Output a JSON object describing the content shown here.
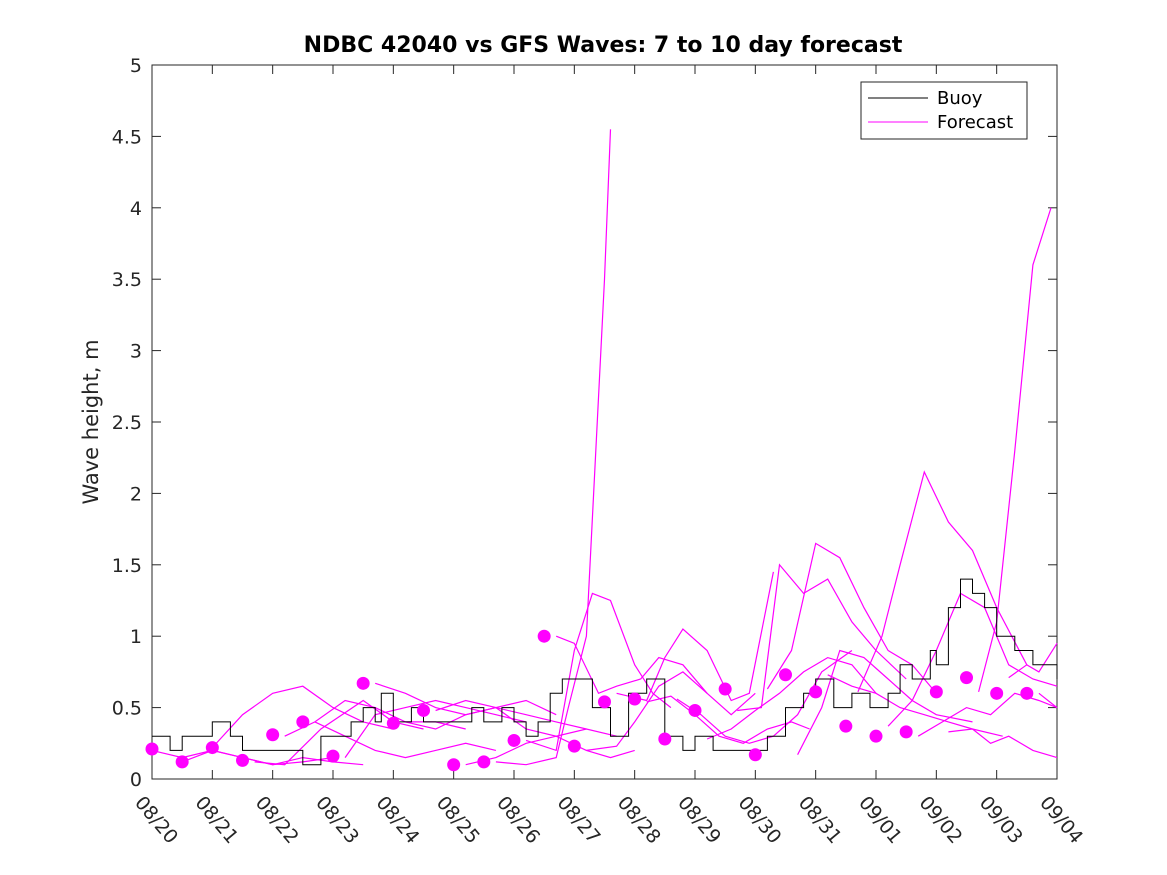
{
  "chart_data": {
    "type": "line",
    "title": "NDBC 42040 vs GFS Waves: 7 to 10 day forecast",
    "xlabel": "",
    "ylabel": "Wave height, m",
    "xlim": [
      0,
      15
    ],
    "ylim": [
      0,
      5
    ],
    "x_unit": "days since 08/20",
    "x_ticks": [
      0,
      1,
      2,
      3,
      4,
      5,
      6,
      7,
      8,
      9,
      10,
      11,
      12,
      13,
      14,
      15
    ],
    "x_tick_labels": [
      "08/20",
      "08/21",
      "08/22",
      "08/23",
      "08/24",
      "08/25",
      "08/26",
      "08/27",
      "08/28",
      "08/29",
      "08/30",
      "08/31",
      "09/01",
      "09/02",
      "09/03",
      "09/04"
    ],
    "y_ticks": [
      0,
      0.5,
      1,
      1.5,
      2,
      2.5,
      3,
      3.5,
      4,
      4.5,
      5
    ],
    "y_tick_labels": [
      "0",
      "0.5",
      "1",
      "1.5",
      "2",
      "2.5",
      "3",
      "3.5",
      "4",
      "4.5",
      "5"
    ],
    "legend": {
      "position": "top-right",
      "entries": [
        "Buoy",
        "Forecast"
      ]
    },
    "colors": {
      "buoy": "#000000",
      "forecast": "#ff00ff",
      "axes": "#262626"
    },
    "series": [
      {
        "name": "Buoy",
        "color": "#000000",
        "x": [
          0,
          0.3,
          0.5,
          1.0,
          1.3,
          1.5,
          2.0,
          2.5,
          2.8,
          3.0,
          3.3,
          3.5,
          3.7,
          3.8,
          4.0,
          4.3,
          4.5,
          5.0,
          5.3,
          5.5,
          5.8,
          6.0,
          6.2,
          6.4,
          6.6,
          6.8,
          7.0,
          7.3,
          7.6,
          7.9,
          8.2,
          8.5,
          8.8,
          9.0,
          9.3,
          9.6,
          9.9,
          10.2,
          10.5,
          10.8,
          11.0,
          11.3,
          11.6,
          11.9,
          12.2,
          12.4,
          12.6,
          12.9,
          13.0,
          13.2,
          13.4,
          13.6,
          13.8,
          14.0,
          14.3,
          14.6,
          14.9,
          15.0
        ],
        "y": [
          0.3,
          0.2,
          0.3,
          0.4,
          0.3,
          0.2,
          0.2,
          0.1,
          0.3,
          0.3,
          0.4,
          0.5,
          0.4,
          0.6,
          0.4,
          0.5,
          0.4,
          0.4,
          0.5,
          0.4,
          0.5,
          0.4,
          0.3,
          0.4,
          0.6,
          0.7,
          0.7,
          0.5,
          0.3,
          0.6,
          0.7,
          0.3,
          0.2,
          0.3,
          0.2,
          0.2,
          0.2,
          0.3,
          0.5,
          0.6,
          0.7,
          0.5,
          0.6,
          0.5,
          0.6,
          0.8,
          0.7,
          0.9,
          0.8,
          1.2,
          1.4,
          1.3,
          1.2,
          1.0,
          0.9,
          0.8,
          0.8,
          0.7
        ]
      }
    ],
    "forecast_runs": [
      {
        "x": [
          0,
          0.5,
          1,
          1.5,
          2,
          2.5,
          3
        ],
        "y": [
          0.2,
          0.15,
          0.2,
          0.15,
          0.1,
          0.12,
          0.15
        ]
      },
      {
        "x": [
          0.5,
          1,
          1.5,
          2,
          2.5,
          3,
          3.5
        ],
        "y": [
          0.12,
          0.2,
          0.15,
          0.1,
          0.15,
          0.12,
          0.1
        ]
      },
      {
        "x": [
          1,
          1.5,
          2,
          2.5,
          3,
          3.5,
          4
        ],
        "y": [
          0.22,
          0.45,
          0.6,
          0.65,
          0.5,
          0.4,
          0.35
        ]
      },
      {
        "x": [
          1.7,
          2.2,
          2.8,
          3.5,
          4,
          4.5
        ],
        "y": [
          0.12,
          0.1,
          0.35,
          0.55,
          0.4,
          0.35
        ]
      },
      {
        "x": [
          2.2,
          2.7,
          3.2,
          3.7,
          4.2,
          4.7,
          5.2
        ],
        "y": [
          0.3,
          0.4,
          0.55,
          0.5,
          0.4,
          0.4,
          0.35
        ]
      },
      {
        "x": [
          2.7,
          3.2,
          3.7,
          4.2,
          4.7,
          5.2,
          5.7
        ],
        "y": [
          0.4,
          0.3,
          0.2,
          0.15,
          0.2,
          0.25,
          0.2
        ]
      },
      {
        "x": [
          3.2,
          3.7,
          4.2,
          4.7,
          5.2,
          5.7,
          6.2
        ],
        "y": [
          0.15,
          0.45,
          0.5,
          0.55,
          0.5,
          0.45,
          0.4
        ]
      },
      {
        "x": [
          3.7,
          4.2,
          4.7,
          5.2,
          5.7,
          6.2,
          6.7
        ],
        "y": [
          0.67,
          0.6,
          0.5,
          0.45,
          0.5,
          0.55,
          0.45
        ]
      },
      {
        "x": [
          4.2,
          4.7,
          5.2,
          5.7,
          6.2,
          6.7,
          7.2
        ],
        "y": [
          0.4,
          0.35,
          0.45,
          0.5,
          0.45,
          0.4,
          0.35
        ]
      },
      {
        "x": [
          4.7,
          5.2,
          5.7,
          6.2,
          6.7,
          7.2,
          7.7
        ],
        "y": [
          0.48,
          0.55,
          0.5,
          0.35,
          0.3,
          0.35,
          0.3
        ]
      },
      {
        "x": [
          5.2,
          5.7,
          6.2,
          6.7,
          7.2,
          7.6,
          8.0
        ],
        "y": [
          0.1,
          0.15,
          0.25,
          0.3,
          0.2,
          0.15,
          0.2
        ]
      },
      {
        "x": [
          5.7,
          6.2,
          6.7,
          6.9,
          7.2,
          7.5,
          7.6
        ],
        "y": [
          0.12,
          0.1,
          0.15,
          0.5,
          1.0,
          3.5,
          4.55
        ]
      },
      {
        "x": [
          6.2,
          6.7,
          7.0,
          7.3,
          7.6,
          8.0,
          8.3,
          8.6
        ],
        "y": [
          0.27,
          0.2,
          0.9,
          1.3,
          1.25,
          0.8,
          0.6,
          0.5
        ]
      },
      {
        "x": [
          6.7,
          7.0,
          7.4,
          7.7,
          8.1,
          8.4,
          8.8,
          9.2
        ],
        "y": [
          1.0,
          0.95,
          0.6,
          0.65,
          0.7,
          0.85,
          0.8,
          0.6
        ]
      },
      {
        "x": [
          7.2,
          7.7,
          8.0,
          8.4,
          8.8,
          9.2,
          9.6,
          10.0
        ],
        "y": [
          0.2,
          0.23,
          0.4,
          0.65,
          0.75,
          0.6,
          0.45,
          0.6
        ]
      },
      {
        "x": [
          7.7,
          8.2,
          8.5,
          8.8,
          9.2,
          9.6,
          9.9,
          10.3
        ],
        "y": [
          0.6,
          0.55,
          0.85,
          1.05,
          0.9,
          0.55,
          0.6,
          1.45
        ]
      },
      {
        "x": [
          8.2,
          8.6,
          9.0,
          9.4,
          9.8,
          10.2,
          10.6,
          10.9
        ],
        "y": [
          0.54,
          0.58,
          0.45,
          0.3,
          0.25,
          0.35,
          0.4,
          0.35
        ]
      },
      {
        "x": [
          8.7,
          9.1,
          9.5,
          9.9,
          10.3,
          10.7,
          11.1,
          11.6
        ],
        "y": [
          0.56,
          0.45,
          0.3,
          0.25,
          0.3,
          0.45,
          0.75,
          0.9
        ]
      },
      {
        "x": [
          9.2,
          9.6,
          10.0,
          10.4,
          10.8,
          11.2,
          11.6,
          12.0
        ],
        "y": [
          0.28,
          0.35,
          0.48,
          0.6,
          0.75,
          0.85,
          0.8,
          0.6
        ]
      },
      {
        "x": [
          9.7,
          10.1,
          10.4,
          10.8,
          11.2,
          11.6,
          12.0,
          12.5
        ],
        "y": [
          0.48,
          0.5,
          1.5,
          1.3,
          1.4,
          1.1,
          0.9,
          0.7
        ]
      },
      {
        "x": [
          10.2,
          10.6,
          11.0,
          11.4,
          11.8,
          12.2,
          12.6,
          13.0
        ],
        "y": [
          0.63,
          0.9,
          1.65,
          1.55,
          1.2,
          0.9,
          0.8,
          0.6
        ]
      },
      {
        "x": [
          10.7,
          11.1,
          11.4,
          11.8,
          12.2,
          12.6,
          13.0,
          13.6
        ],
        "y": [
          0.17,
          0.5,
          0.9,
          0.85,
          0.7,
          0.55,
          0.45,
          0.4
        ]
      },
      {
        "x": [
          11.2,
          11.6,
          12.0,
          12.4,
          12.8,
          13.2,
          13.6,
          14.1
        ],
        "y": [
          0.73,
          0.65,
          0.6,
          0.5,
          0.45,
          0.4,
          0.35,
          0.3
        ]
      },
      {
        "x": [
          11.7,
          12.1,
          12.4,
          12.8,
          13.2,
          13.6,
          14.0,
          14.5
        ],
        "y": [
          0.61,
          1.0,
          1.5,
          2.15,
          1.8,
          1.6,
          1.2,
          0.8
        ]
      },
      {
        "x": [
          12.2,
          12.6,
          13.0,
          13.4,
          13.8,
          14.2,
          14.6,
          15.0
        ],
        "y": [
          0.37,
          0.55,
          0.9,
          1.3,
          1.2,
          0.8,
          0.7,
          0.65
        ]
      },
      {
        "x": [
          12.7,
          13.1,
          13.5,
          13.9,
          14.3,
          14.7,
          15.0
        ],
        "y": [
          0.3,
          0.4,
          0.5,
          0.45,
          0.6,
          0.55,
          0.5
        ]
      },
      {
        "x": [
          13.2,
          13.6,
          13.9,
          14.2,
          14.6,
          15.0
        ],
        "y": [
          0.33,
          0.35,
          0.25,
          0.3,
          0.2,
          0.15
        ]
      },
      {
        "x": [
          13.7,
          14.0,
          14.3,
          14.6,
          14.9
        ],
        "y": [
          0.61,
          1.1,
          2.3,
          3.6,
          4.0
        ]
      },
      {
        "x": [
          14.2,
          14.5,
          14.7,
          15.0
        ],
        "y": [
          0.71,
          0.8,
          0.75,
          0.95
        ]
      },
      {
        "x": [
          14.7,
          15.0
        ],
        "y": [
          0.6,
          0.5
        ]
      }
    ],
    "forecast_markers": {
      "x": [
        0,
        0.5,
        1.0,
        1.5,
        2.0,
        2.5,
        3.0,
        3.5,
        4.0,
        4.5,
        5.0,
        5.5,
        6.0,
        6.5,
        7.0,
        7.5,
        8.0,
        8.5,
        9.0,
        9.5,
        10.0,
        10.5,
        11.0,
        11.5,
        12.0,
        12.5,
        13.0,
        13.5,
        14.0,
        14.5
      ],
      "y": [
        0.21,
        0.12,
        0.22,
        0.13,
        0.31,
        0.4,
        0.16,
        0.67,
        0.39,
        0.48,
        0.1,
        0.12,
        0.27,
        1.0,
        0.23,
        0.54,
        0.56,
        0.28,
        0.48,
        0.63,
        0.17,
        0.73,
        0.61,
        0.37,
        0.3,
        0.33,
        0.61,
        0.71,
        0.6,
        0.6
      ]
    }
  }
}
